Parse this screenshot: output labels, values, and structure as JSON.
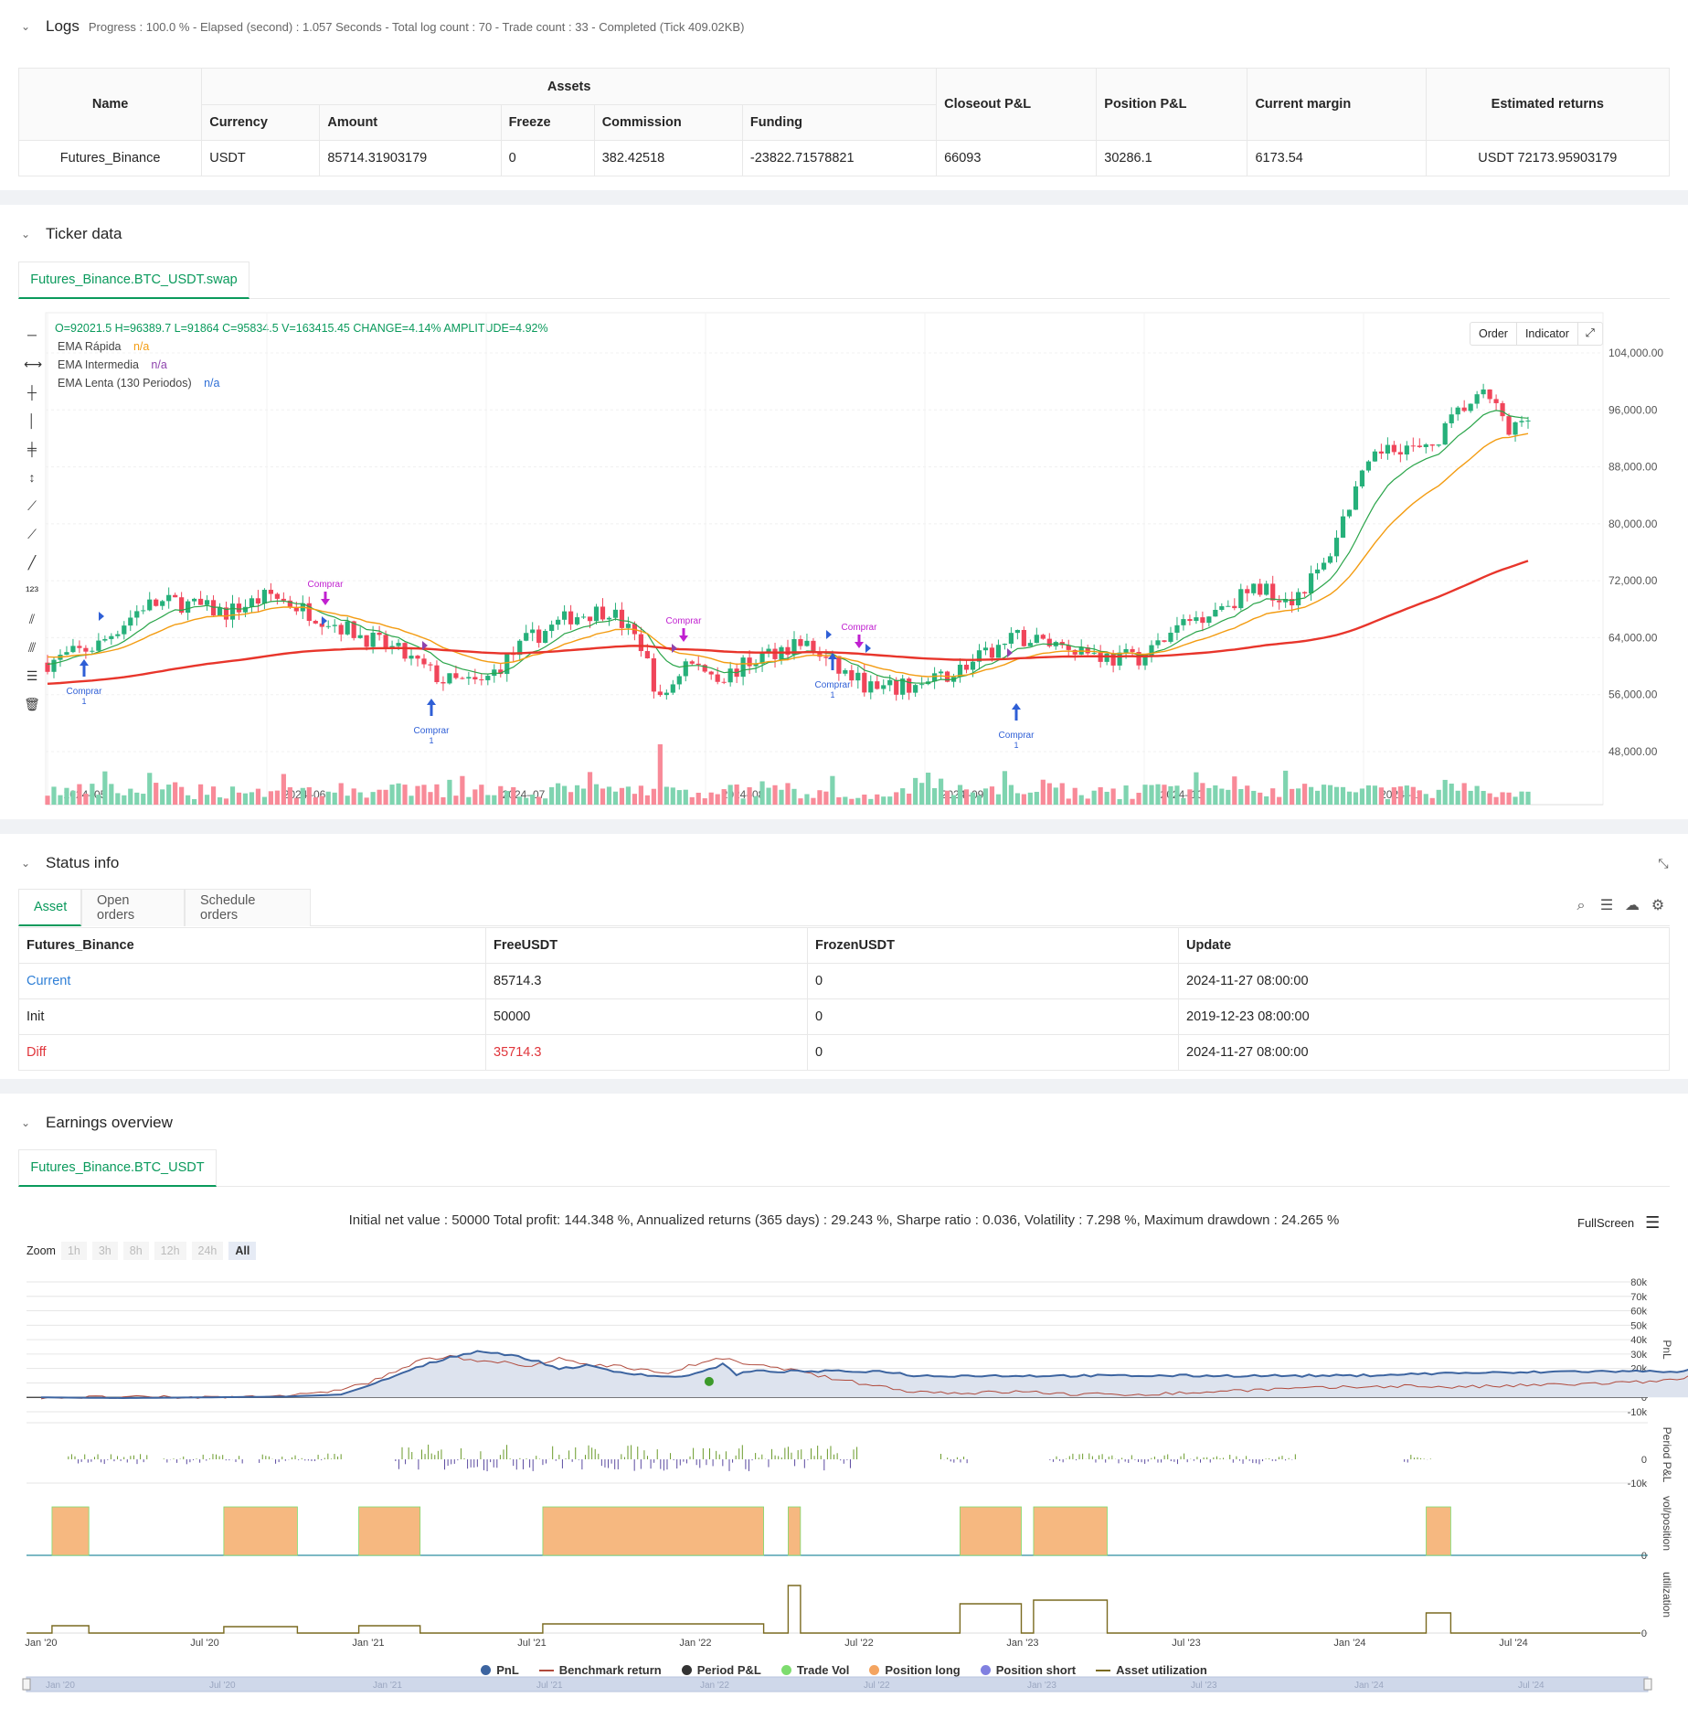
{
  "logs": {
    "title": "Logs",
    "status": "Progress : 100.0 % - Elapsed (second) : 1.057  Seconds - Total log count : 70 - Trade count : 33 - Completed (Tick 409.02KB)",
    "table": {
      "name_header": "Name",
      "assets_header": "Assets",
      "sub_headers": [
        "Currency",
        "Amount",
        "Freeze",
        "Commission",
        "Funding"
      ],
      "closeout_header": "Closeout P&L",
      "position_header": "Position P&L",
      "margin_header": "Current margin",
      "returns_header": "Estimated returns",
      "row": {
        "name": "Futures_Binance",
        "currency": "USDT",
        "amount": "85714.31903179",
        "freeze": "0",
        "commission": "382.42518",
        "funding": "-23822.71578821",
        "closeout": "66093",
        "position": "30286.1",
        "margin": "6173.54",
        "returns": "USDT 72173.95903179"
      }
    }
  },
  "ticker": {
    "title": "Ticker data",
    "tab": "Futures_Binance.BTC_USDT.swap",
    "ohlc": "O=92021.5 H=96389.7 L=91864 C=95834.5 V=163415.45 CHANGE=4.14% AMPLITUDE=4.92%",
    "legend": [
      {
        "name": "EMA Rápida",
        "value": "n/a",
        "color": "#f39c12"
      },
      {
        "name": "EMA Intermedia",
        "value": "n/a",
        "color": "#8e44ad"
      },
      {
        "name": "EMA Lenta (130 Periodos)",
        "value": "n/a",
        "color": "#2f6fd6"
      }
    ],
    "buttons": {
      "order": "Order",
      "indicator": "Indicator"
    },
    "y_ticks": [
      "104,000.00",
      "96,000.00",
      "88,000.00",
      "80,000.00",
      "72,000.00",
      "64,000.00",
      "56,000.00",
      "48,000.00"
    ],
    "x_ticks": [
      "2024–05",
      "2024–06",
      "2024–07",
      "2024–08",
      "2024–09",
      "2024–10",
      "2024–11"
    ],
    "signal_label": "Comprar",
    "signal_count": "1"
  },
  "status": {
    "title": "Status info",
    "tabs": [
      "Asset",
      "Open orders",
      "Schedule orders"
    ],
    "headers": [
      "Futures_Binance",
      "FreeUSDT",
      "FrozenUSDT",
      "Update"
    ],
    "rows": [
      {
        "label": "Current",
        "free": "85714.3",
        "frozen": "0",
        "update": "2024-11-27 08:00:00"
      },
      {
        "label": "Init",
        "free": "50000",
        "frozen": "0",
        "update": "2019-12-23 08:00:00"
      },
      {
        "label": "Diff",
        "free": "35714.3",
        "frozen": "0",
        "update": "2024-11-27 08:00:00"
      }
    ]
  },
  "earnings": {
    "title": "Earnings overview",
    "tab": "Futures_Binance.BTC_USDT",
    "summary": "Initial net value : 50000 Total profit: 144.348 %, Annualized returns (365 days) : 29.243 %, Sharpe ratio : 0.036, Volatility : 7.298 %, Maximum drawdown : 24.265 %",
    "fullscreen": "FullScreen",
    "zoom_label": "Zoom",
    "zoom_options": [
      "1h",
      "3h",
      "8h",
      "12h",
      "24h",
      "All"
    ],
    "pnl_ticks": [
      "80k",
      "70k",
      "60k",
      "50k",
      "40k",
      "30k",
      "20k",
      "10k",
      "0",
      "-10k"
    ],
    "period_ticks": [
      "0",
      "-10k"
    ],
    "vol_ticks": [
      "0"
    ],
    "util_ticks": [
      "0"
    ],
    "axis_titles": [
      "PnL",
      "Period P&L",
      "vol/position",
      "utilization"
    ],
    "x_ticks": [
      "Jan '20",
      "Jul '20",
      "Jan '21",
      "Jul '21",
      "Jan '22",
      "Jul '22",
      "Jan '23",
      "Jul '23",
      "Jan '24",
      "Jul '24"
    ],
    "legend": [
      {
        "name": "PnL",
        "color": "#3c64a0",
        "kind": "dot"
      },
      {
        "name": "Benchmark return",
        "color": "#b04a3c",
        "kind": "line"
      },
      {
        "name": "Period P&L",
        "color": "#333333",
        "kind": "dot"
      },
      {
        "name": "Trade Vol",
        "color": "#7ddc6e",
        "kind": "dot"
      },
      {
        "name": "Position long",
        "color": "#f4a460",
        "kind": "dot"
      },
      {
        "name": "Position short",
        "color": "#8080e0",
        "kind": "dot"
      },
      {
        "name": "Asset utilization",
        "color": "#7a6a20",
        "kind": "line"
      }
    ]
  }
}
